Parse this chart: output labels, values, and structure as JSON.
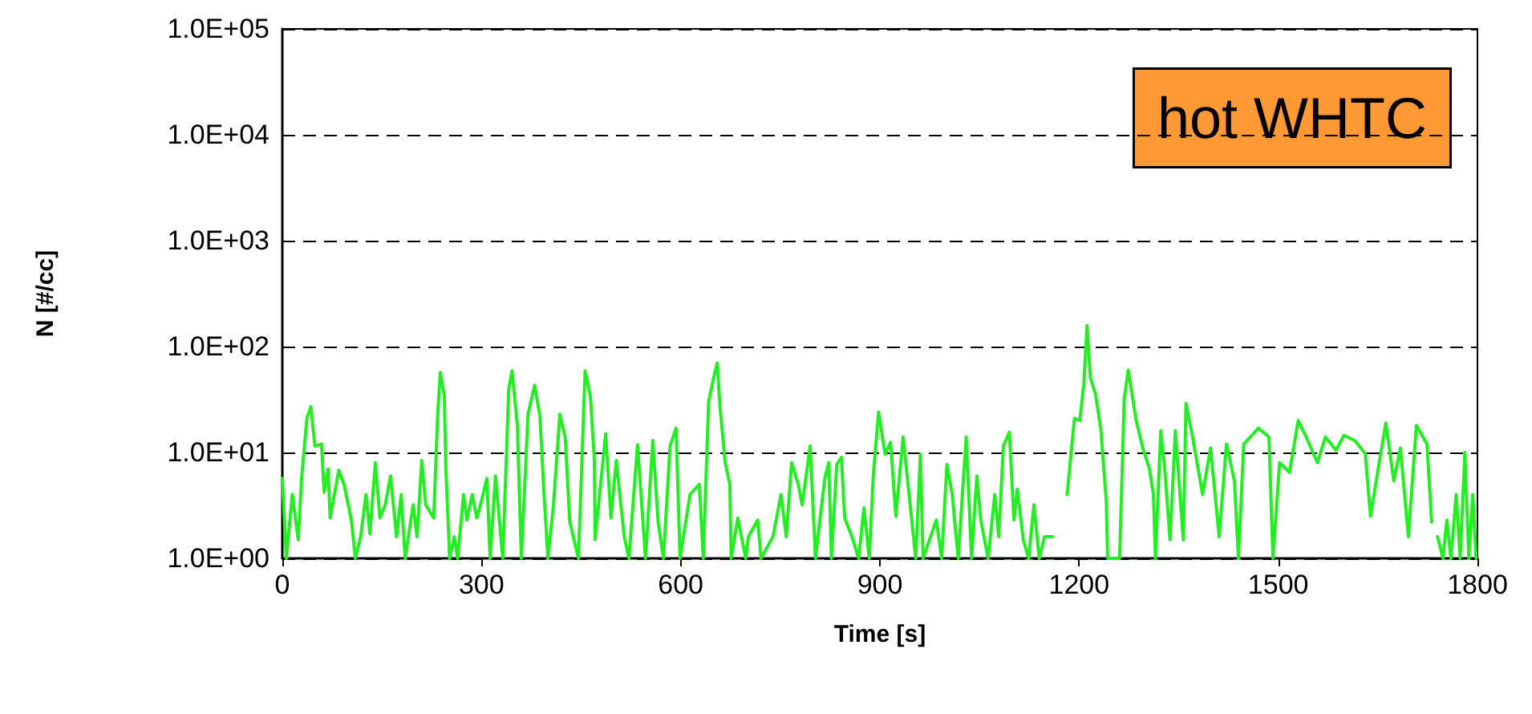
{
  "chart_data": {
    "type": "line",
    "xlabel": "Time [s]",
    "ylabel": "N [#/cc]",
    "log": "y",
    "grid": "y",
    "marker": "none",
    "line_style": "solid",
    "annotations": [
      "hot WHTC"
    ],
    "xlim": [
      0,
      1800
    ],
    "xticks": [
      0,
      300,
      600,
      900,
      1200,
      1500,
      1800
    ],
    "ylim": [
      1,
      100000
    ],
    "yticks": [
      {
        "value": 1,
        "label": "1.0E+00"
      },
      {
        "value": 10,
        "label": "1.0E+01"
      },
      {
        "value": 100,
        "label": "1.0E+02"
      },
      {
        "value": 1000,
        "label": "1.0E+03"
      },
      {
        "value": 10000,
        "label": "1.0E+04"
      },
      {
        "value": 100000,
        "label": "1.0E+05"
      }
    ],
    "series": [
      {
        "color": "#22ee22",
        "x": [
          0,
          6,
          15,
          24,
          29,
          37,
          43,
          49,
          59,
          63,
          69,
          72,
          85,
          93,
          104,
          110,
          118,
          126,
          132,
          140,
          147,
          155,
          163,
          172,
          179,
          185,
          197,
          203,
          210,
          216,
          228,
          234,
          238,
          244,
          246,
          252,
          259,
          264,
          273,
          278,
          286,
          293,
          301,
          308,
          313,
          321,
          332,
          341,
          346,
          354,
          360,
          370,
          380,
          388,
          394,
          400,
          408,
          418,
          426,
          433,
          446,
          456,
          464,
          470,
          471,
          487,
          495,
          503,
          515,
          522,
          535,
          547,
          558,
          566,
          574,
          584,
          593,
          599,
          614,
          628,
          634,
          642,
          650,
          655,
          659,
          667,
          674,
          676,
          686,
          698,
          702,
          716,
          721,
          739,
          751,
          759,
          767,
          777,
          783,
          795,
          803,
          817,
          823,
          827,
          835,
          842,
          847,
          858,
          868,
          876,
          884,
          890,
          898,
          908,
          916,
          924,
          935,
          944,
          954,
          961,
          965,
          985,
          993,
          1001,
          1009,
          1018,
          1030,
          1038,
          1046,
          1052,
          1063,
          1073,
          1079,
          1086,
          1095,
          1102,
          1107,
          1116,
          1124,
          1132,
          1140,
          1148,
          1160,
          1170,
          1182,
          1193,
          1201,
          1207,
          1212,
          1217,
          1225,
          1233,
          1241,
          1243,
          1261,
          1268,
          1274,
          1286,
          1296,
          1306,
          1312,
          1315,
          1323,
          1329,
          1337,
          1345,
          1357,
          1361,
          1371,
          1386,
          1398,
          1411,
          1422,
          1434,
          1440,
          1448,
          1458,
          1470,
          1486,
          1492,
          1502,
          1517,
          1530,
          1542,
          1559,
          1571,
          1587,
          1599,
          1615,
          1631,
          1639,
          1652,
          1662,
          1674,
          1684,
          1696,
          1708,
          1724,
          1731,
          1735,
          1740,
          1748,
          1754,
          1760,
          1768,
          1774,
          1781,
          1787,
          1793,
          1798
        ],
        "values": [
          5.7,
          1,
          4,
          1.5,
          5.7,
          21,
          27,
          11.5,
          12,
          4.2,
          7,
          2.4,
          6.8,
          5,
          2.3,
          1,
          1.6,
          4,
          1.7,
          8,
          2.4,
          3.2,
          6,
          1.6,
          4,
          1,
          3.2,
          1.6,
          8.4,
          3.2,
          2.4,
          23,
          57,
          34,
          8,
          1,
          1.6,
          1,
          4,
          2.3,
          4,
          2.4,
          3.7,
          5.7,
          1,
          6,
          1,
          40,
          59,
          18,
          1,
          23,
          43,
          22,
          4.2,
          1,
          3,
          23,
          14,
          2.2,
          1,
          59,
          34,
          8.4,
          1.5,
          15,
          2.4,
          8.4,
          1.6,
          1,
          11.8,
          1,
          13,
          2.2,
          1,
          11.5,
          17,
          1,
          4,
          5,
          1,
          30,
          52,
          70,
          28,
          8,
          5,
          1,
          2.4,
          1,
          1.6,
          2.3,
          1,
          1.6,
          4,
          1.6,
          8,
          5,
          3.2,
          11.5,
          1,
          5.7,
          8,
          1,
          7.7,
          9,
          2.4,
          1.6,
          1,
          3,
          1,
          6,
          24,
          9.6,
          12.5,
          2.5,
          14,
          4,
          1,
          9.6,
          1,
          2.3,
          1,
          7.7,
          4,
          1,
          14,
          1,
          6,
          2.3,
          1,
          4,
          1.6,
          11.5,
          15.5,
          2.3,
          4.5,
          1.5,
          1,
          3.2,
          1,
          1.6,
          1.6,
          null,
          4,
          21,
          20,
          43,
          158,
          51,
          35,
          16,
          3.4,
          1,
          1,
          32,
          60,
          20,
          11,
          7,
          4,
          1,
          16,
          7,
          1.5,
          16,
          1.5,
          29,
          14,
          4,
          11,
          1.6,
          12,
          5.4,
          1,
          12,
          14,
          17,
          14,
          1,
          8,
          6.5,
          20,
          14,
          8,
          14,
          10.5,
          14.5,
          13,
          9.8,
          2.5,
          8,
          19,
          5.4,
          11,
          1.6,
          18,
          12,
          2.2,
          null,
          1.6,
          1,
          2.3,
          1,
          4,
          1,
          10,
          1,
          4,
          1
        ]
      }
    ]
  }
}
